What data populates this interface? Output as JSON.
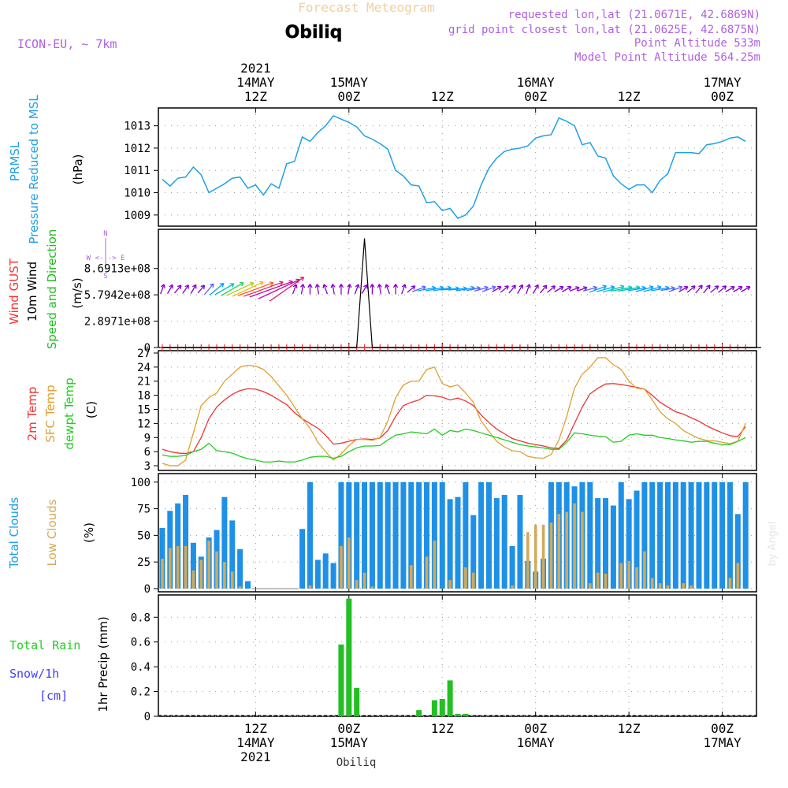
{
  "header": {
    "app_title": "Forecast Meteogram",
    "location": "Obiliq",
    "model": "ICON-EU, ~ 7km",
    "requested": "requested lon,lat (21.0671E, 42.6869N)",
    "gridpoint": "grid point closest lon,lat (21.0625E, 42.6875N)",
    "point_alt": "Point Altitude 533m",
    "model_alt": "Model Point Altitude 564.25m",
    "footer_location": "Obiliq",
    "watermark": "by Angel"
  },
  "top_axis": {
    "year": "2021",
    "labels": [
      {
        "hour": 12,
        "l1": "14MAY",
        "l2": "12Z"
      },
      {
        "hour": 24,
        "l1": "15MAY",
        "l2": "00Z"
      },
      {
        "hour": 36,
        "l1": "",
        "l2": "12Z"
      },
      {
        "hour": 48,
        "l1": "16MAY",
        "l2": "00Z"
      },
      {
        "hour": 60,
        "l1": "",
        "l2": "12Z"
      },
      {
        "hour": 72,
        "l1": "17MAY",
        "l2": "00Z"
      }
    ]
  },
  "bottom_axis": {
    "year": "2021",
    "labels": [
      {
        "hour": 12,
        "l1": "12Z",
        "l2": "14MAY"
      },
      {
        "hour": 24,
        "l1": "00Z",
        "l2": "15MAY"
      },
      {
        "hour": 36,
        "l1": "12Z",
        "l2": ""
      },
      {
        "hour": 48,
        "l1": "00Z",
        "l2": "16MAY"
      },
      {
        "hour": 60,
        "l1": "12Z",
        "l2": ""
      },
      {
        "hour": 72,
        "l1": "00Z",
        "l2": "17MAY"
      }
    ]
  },
  "panel_labels": {
    "pressure": {
      "l1": "PRMSL",
      "l2": "Pressure Reduced to MSL",
      "unit": "(hPa)"
    },
    "wind": {
      "gust": "Wind GUST",
      "wind": "10m Wind",
      "dir": "Speed and Direction",
      "unit": "(m/s)",
      "compass_n": "N",
      "compass_s": "S",
      "compass_we": "W <-|-> E"
    },
    "temp": {
      "t2m": "2m Temp",
      "sfc": "SFC Temp",
      "dew": "dewpt Temp",
      "unit": "(C)"
    },
    "clouds": {
      "total": "Total Clouds",
      "low": "Low Clouds",
      "unit": "(%)"
    },
    "precip": {
      "rain": "Total   Rain",
      "snow": "Snow/1h",
      "cm": "[cm]",
      "unit": "1hr Precip (mm)"
    }
  },
  "colors": {
    "pressure": "#1ea0e6",
    "gust": "#ff3030",
    "t2m": "#ee3333",
    "sfc": "#e0a030",
    "dew": "#22cc22",
    "total_cloud": "#1e90e6",
    "low_cloud": "#d4a85a",
    "precip": "#22c022",
    "label_purple": "#b060e0",
    "label_blue": "#4040ff"
  },
  "chart_data": [
    {
      "type": "line",
      "title": "PRMSL Pressure Reduced to MSL",
      "ylabel": "(hPa)",
      "x_start_hour": 0,
      "x_step_hours": 1,
      "ylim": [
        1008.5,
        1013.8
      ],
      "yticks": [
        1009,
        1010,
        1011,
        1012,
        1013
      ],
      "series": [
        {
          "name": "PRMSL",
          "values": [
            1010.6,
            1010.3,
            1010.65,
            1010.7,
            1011.15,
            1010.8,
            1010.0,
            1010.2,
            1010.4,
            1010.65,
            1010.7,
            1010.2,
            1010.35,
            1009.9,
            1010.4,
            1010.2,
            1011.3,
            1011.4,
            1012.5,
            1012.3,
            1012.7,
            1013.0,
            1013.45,
            1013.3,
            1013.15,
            1012.95,
            1012.55,
            1012.4,
            1012.2,
            1011.95,
            1011.0,
            1010.75,
            1010.35,
            1010.3,
            1009.55,
            1009.6,
            1009.2,
            1009.3,
            1008.85,
            1009.0,
            1009.4,
            1010.35,
            1011.1,
            1011.55,
            1011.85,
            1011.95,
            1012.0,
            1012.1,
            1012.45,
            1012.55,
            1012.6,
            1013.35,
            1013.2,
            1013.0,
            1012.15,
            1012.25,
            1011.65,
            1011.55,
            1010.75,
            1010.4,
            1010.15,
            1010.35,
            1010.35,
            1010.0,
            1010.55,
            1010.85,
            1011.8,
            1011.8,
            1011.8,
            1011.75,
            1012.15,
            1012.2,
            1012.3,
            1012.45,
            1012.5,
            1012.3
          ]
        }
      ]
    },
    {
      "type": "line",
      "title": "10m Wind / Wind GUST",
      "ylabel": "(m/s)",
      "x_start_hour": 0,
      "x_step_hours": 1,
      "ylim": [
        0,
        1300000000.0
      ],
      "yticks": [
        0,
        289710000,
        579420000,
        869130000
      ],
      "ytick_labels": [
        "0",
        "2.8971e+08",
        "5.7942e+08",
        "8.6913e+08"
      ],
      "series": [
        {
          "name": "Wind GUST",
          "values": [
            0,
            0,
            0,
            0,
            0,
            0,
            0,
            0,
            0,
            0,
            0,
            0,
            0,
            0,
            0,
            0,
            0,
            0,
            0,
            0,
            0,
            0,
            0,
            0,
            0,
            0,
            0,
            0,
            0,
            0,
            0,
            0,
            0,
            0,
            0,
            0,
            0,
            0,
            0,
            0,
            0,
            0,
            0,
            0,
            0,
            0,
            0,
            0,
            0,
            0,
            0,
            0,
            0,
            0,
            0,
            0,
            0,
            0,
            0,
            0,
            0,
            0,
            0,
            0,
            0,
            0,
            0,
            0,
            0,
            0,
            0,
            0,
            0,
            0,
            0,
            0
          ]
        },
        {
          "name": "10m Wind spike",
          "values": [
            0,
            0,
            0,
            0,
            0,
            0,
            0,
            0,
            0,
            0,
            0,
            0,
            0,
            0,
            0,
            0,
            0,
            0,
            0,
            0,
            0,
            0,
            0,
            0,
            0,
            0,
            1200000000.0,
            0,
            0,
            0,
            0,
            0,
            0,
            0,
            0,
            0,
            0,
            0,
            0,
            0,
            0,
            0,
            0,
            0,
            0,
            0,
            0,
            0,
            0,
            0,
            0,
            0,
            0,
            0,
            0,
            0,
            0,
            0,
            0,
            0,
            0,
            0,
            0,
            0,
            0,
            0,
            0,
            0,
            0,
            0,
            0,
            0,
            0,
            0,
            0,
            0,
            0,
            0
          ]
        }
      ],
      "wind_speed": [
        1,
        1,
        1,
        1,
        1,
        1,
        2,
        3,
        4,
        5,
        6,
        7,
        8,
        9,
        10,
        10,
        9,
        1,
        1,
        1,
        1,
        1,
        1,
        1,
        1,
        1,
        1,
        1,
        1,
        1,
        1,
        1,
        1,
        2,
        3,
        3,
        3,
        3,
        3,
        3,
        2,
        2,
        2,
        1,
        1,
        1,
        1,
        1,
        1,
        1,
        1,
        1,
        1,
        1,
        1,
        2,
        3,
        3,
        4,
        4,
        4,
        3,
        3,
        3,
        3,
        2,
        2,
        1,
        1,
        1,
        1,
        1,
        1,
        1,
        1,
        1
      ],
      "wind_dir_deg": [
        200,
        210,
        220,
        215,
        210,
        220,
        220,
        230,
        240,
        240,
        245,
        245,
        250,
        250,
        250,
        245,
        235,
        200,
        190,
        180,
        170,
        160,
        170,
        180,
        190,
        200,
        210,
        180,
        170,
        160,
        180,
        200,
        230,
        250,
        260,
        260,
        260,
        265,
        265,
        260,
        260,
        255,
        250,
        240,
        230,
        220,
        210,
        200,
        210,
        220,
        230,
        240,
        240,
        250,
        250,
        255,
        250,
        255,
        255,
        260,
        260,
        260,
        255,
        255,
        260,
        260,
        250,
        240,
        230,
        220,
        220,
        230,
        230,
        240,
        240,
        240
      ]
    },
    {
      "type": "line",
      "title": "2m Temp / SFC Temp / dewpt Temp",
      "ylabel": "(C)",
      "x_start_hour": 0,
      "x_step_hours": 1,
      "ylim": [
        2,
        27.5
      ],
      "yticks": [
        3,
        6,
        9,
        12,
        15,
        18,
        21,
        24,
        27
      ],
      "series": [
        {
          "name": "2m Temp",
          "values": [
            6.5,
            6.0,
            5.7,
            5.6,
            6.0,
            9.0,
            13.0,
            15.5,
            17.0,
            18.2,
            19.0,
            19.4,
            19.3,
            18.8,
            18.0,
            17.0,
            16.0,
            14.3,
            13.0,
            12.0,
            11.0,
            9.5,
            7.6,
            7.8,
            8.2,
            8.6,
            8.7,
            8.6,
            8.9,
            10.5,
            13.5,
            15.8,
            16.5,
            17.0,
            18.0,
            17.9,
            17.6,
            17.0,
            17.4,
            16.8,
            15.8,
            13.8,
            12.2,
            10.8,
            9.8,
            8.8,
            8.3,
            7.8,
            7.5,
            7.2,
            6.8,
            6.7,
            8.5,
            12.0,
            15.5,
            18.3,
            19.5,
            20.4,
            20.5,
            20.3,
            20.0,
            19.7,
            19.3,
            18.0,
            16.5,
            15.5,
            14.5,
            14.0,
            13.2,
            12.5,
            11.5,
            10.7,
            10.0,
            9.4,
            9.2,
            11.3
          ]
        },
        {
          "name": "SFC Temp",
          "values": [
            3.5,
            3.0,
            3.0,
            4.2,
            10.0,
            15.8,
            17.5,
            18.5,
            21.0,
            22.5,
            24.0,
            24.4,
            24.2,
            23.5,
            22.0,
            20.0,
            18.0,
            15.5,
            13.0,
            11.0,
            8.0,
            6.0,
            4.2,
            5.5,
            7.3,
            8.6,
            8.6,
            8.4,
            9.0,
            12.5,
            17.5,
            20.2,
            21.0,
            21.0,
            23.5,
            24.0,
            20.5,
            19.8,
            20.2,
            18.5,
            16.5,
            12.5,
            10.3,
            8.2,
            7.0,
            6.2,
            6.0,
            5.0,
            4.7,
            4.6,
            5.4,
            8.5,
            13.5,
            19.5,
            22.5,
            24.0,
            26.0,
            26.0,
            24.5,
            23.5,
            21.0,
            19.5,
            19.3,
            17.0,
            14.5,
            13.0,
            12.0,
            10.5,
            9.6,
            8.8,
            8.4,
            8.3,
            8.0,
            7.7,
            8.2,
            12.0
          ]
        },
        {
          "name": "dewpt Temp",
          "values": [
            5.3,
            5.0,
            5.0,
            5.2,
            6.0,
            6.5,
            7.8,
            6.2,
            6.0,
            5.7,
            5.0,
            4.5,
            4.2,
            3.8,
            3.8,
            4.0,
            3.8,
            3.8,
            4.2,
            4.8,
            5.0,
            5.0,
            4.6,
            5.0,
            6.0,
            6.8,
            7.2,
            7.2,
            7.3,
            8.5,
            9.5,
            9.8,
            10.2,
            10.0,
            9.8,
            10.8,
            9.5,
            10.5,
            10.2,
            10.8,
            10.5,
            10.0,
            9.5,
            9.0,
            8.5,
            8.0,
            7.5,
            7.2,
            7.0,
            6.8,
            6.5,
            6.5,
            8.0,
            10.0,
            9.8,
            9.5,
            9.3,
            9.2,
            8.0,
            8.2,
            9.5,
            9.8,
            9.5,
            9.5,
            9.0,
            8.8,
            8.5,
            8.3,
            8.0,
            8.2,
            8.2,
            7.8,
            7.5,
            7.5,
            8.2,
            9.0
          ]
        }
      ]
    },
    {
      "type": "bar",
      "title": "Total Clouds / Low Clouds",
      "ylabel": "(%)",
      "x_start_hour": 0,
      "x_step_hours": 1,
      "ylim": [
        -3,
        108
      ],
      "yticks": [
        0,
        25,
        50,
        75,
        100
      ],
      "series": [
        {
          "name": "Total Clouds",
          "values": [
            57,
            73,
            80,
            88,
            43,
            30,
            48,
            55,
            86,
            64,
            37,
            7,
            0,
            0,
            0,
            0,
            0,
            0,
            56,
            100,
            27,
            33,
            24,
            100,
            100,
            100,
            100,
            100,
            100,
            100,
            100,
            100,
            100,
            100,
            100,
            100,
            100,
            84,
            86,
            100,
            69,
            100,
            100,
            85,
            88,
            40,
            88,
            26,
            16,
            28,
            100,
            100,
            100,
            96,
            100,
            100,
            85,
            85,
            78,
            100,
            84,
            92,
            100,
            100,
            100,
            100,
            100,
            100,
            100,
            100,
            100,
            100,
            100,
            100,
            70,
            100
          ]
        },
        {
          "name": "Low Clouds",
          "values": [
            28,
            38,
            40,
            40,
            17,
            27,
            45,
            35,
            25,
            16,
            2,
            0,
            0,
            0,
            0,
            0,
            0,
            0,
            0,
            3,
            0,
            0,
            0,
            40,
            48,
            8,
            15,
            2,
            0,
            0,
            0,
            0,
            22,
            0,
            30,
            45,
            0,
            8,
            0,
            20,
            15,
            0,
            0,
            0,
            0,
            3,
            0,
            53,
            60,
            60,
            62,
            70,
            72,
            80,
            72,
            5,
            15,
            14,
            0,
            24,
            26,
            20,
            35,
            10,
            5,
            3,
            0,
            5,
            3,
            0,
            0,
            0,
            0,
            10,
            24,
            0
          ]
        }
      ]
    },
    {
      "type": "bar",
      "title": "1hr Precip",
      "ylabel": "1hr Precip (mm)",
      "x_start_hour": 0,
      "x_step_hours": 1,
      "ylim": [
        0,
        0.98
      ],
      "yticks": [
        0,
        0.2,
        0.4,
        0.6,
        0.8
      ],
      "ytick_labels": [
        "0",
        "0.2",
        "0.4",
        "0.6",
        "0.8"
      ],
      "series": [
        {
          "name": "Total Rain",
          "values": [
            0,
            0,
            0,
            0,
            0,
            0,
            0,
            0,
            0,
            0,
            0,
            0,
            0,
            0,
            0,
            0,
            0,
            0,
            0,
            0,
            0,
            0,
            0,
            0.58,
            0.95,
            0.23,
            0,
            0,
            0,
            0,
            0,
            0,
            0,
            0.05,
            0,
            0.13,
            0.14,
            0.29,
            0.02,
            0.02,
            0,
            0,
            0,
            0,
            0,
            0,
            0,
            0,
            0,
            0,
            0,
            0,
            0,
            0,
            0,
            0,
            0,
            0,
            0,
            0,
            0,
            0,
            0,
            0,
            0,
            0,
            0,
            0,
            0,
            0,
            0,
            0,
            0,
            0,
            0,
            0
          ]
        },
        {
          "name": "Snow/1h",
          "values": [
            0,
            0,
            0,
            0,
            0,
            0,
            0,
            0,
            0,
            0,
            0,
            0,
            0,
            0,
            0,
            0,
            0,
            0,
            0,
            0,
            0,
            0,
            0,
            0,
            0,
            0,
            0,
            0,
            0,
            0,
            0,
            0,
            0,
            0,
            0,
            0,
            0,
            0,
            0,
            0,
            0,
            0,
            0,
            0,
            0,
            0,
            0,
            0,
            0,
            0,
            0,
            0,
            0,
            0,
            0,
            0,
            0,
            0,
            0,
            0,
            0,
            0,
            0,
            0,
            0,
            0,
            0,
            0,
            0,
            0,
            0,
            0,
            0,
            0,
            0,
            0
          ]
        }
      ]
    }
  ]
}
